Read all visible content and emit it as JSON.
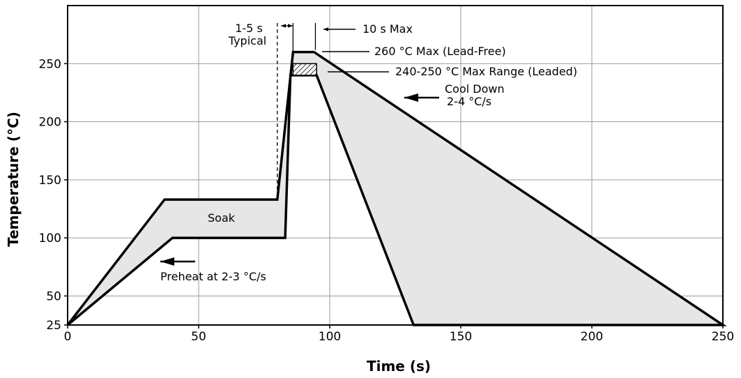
{
  "chart_data": {
    "type": "line",
    "title": "",
    "xlabel": "Time (s)",
    "ylabel": "Temperature (°C)",
    "xlim": [
      0,
      250
    ],
    "ylim": [
      25,
      300
    ],
    "grid": true,
    "x_ticks": [
      0,
      50,
      100,
      150,
      200,
      250
    ],
    "y_ticks": [
      25,
      50,
      100,
      150,
      200,
      250
    ],
    "colors": {
      "fill": "#e6e6e6",
      "line": "#000000",
      "grid": "#9a9a9a"
    },
    "series": [
      {
        "points": [
          [
            0,
            25
          ],
          [
            37,
            133
          ],
          [
            80,
            133
          ],
          [
            86,
            260
          ],
          [
            94,
            260
          ],
          [
            250,
            25
          ],
          [
            132,
            25
          ],
          [
            95,
            240
          ],
          [
            85,
            240
          ],
          [
            83,
            100
          ],
          [
            40,
            100
          ],
          [
            0,
            25
          ]
        ]
      }
    ],
    "leaded_range": {
      "x": [
        86,
        95
      ],
      "y": [
        240,
        250
      ]
    },
    "typical_marker": {
      "x": [
        80,
        86
      ],
      "y_top": 285,
      "y_bottom": 133
    },
    "max_marker": {
      "x": 94,
      "y_top": 285,
      "y_bottom": 260
    },
    "annotations": [
      {
        "id": "typical-1",
        "text": "1-5 s"
      },
      {
        "id": "typical-2",
        "text": "Typical"
      },
      {
        "id": "max-time",
        "text": "10 s Max"
      },
      {
        "id": "lead-free",
        "text": "260 °C Max (Lead-Free)"
      },
      {
        "id": "leaded",
        "text": "240-250 °C Max Range (Leaded)"
      },
      {
        "id": "cool-1",
        "text": "Cool Down"
      },
      {
        "id": "cool-2",
        "text": "2-4 °C/s"
      },
      {
        "id": "soak",
        "text": "Soak"
      },
      {
        "id": "preheat",
        "text": "Preheat at 2-3 °C/s"
      }
    ]
  }
}
